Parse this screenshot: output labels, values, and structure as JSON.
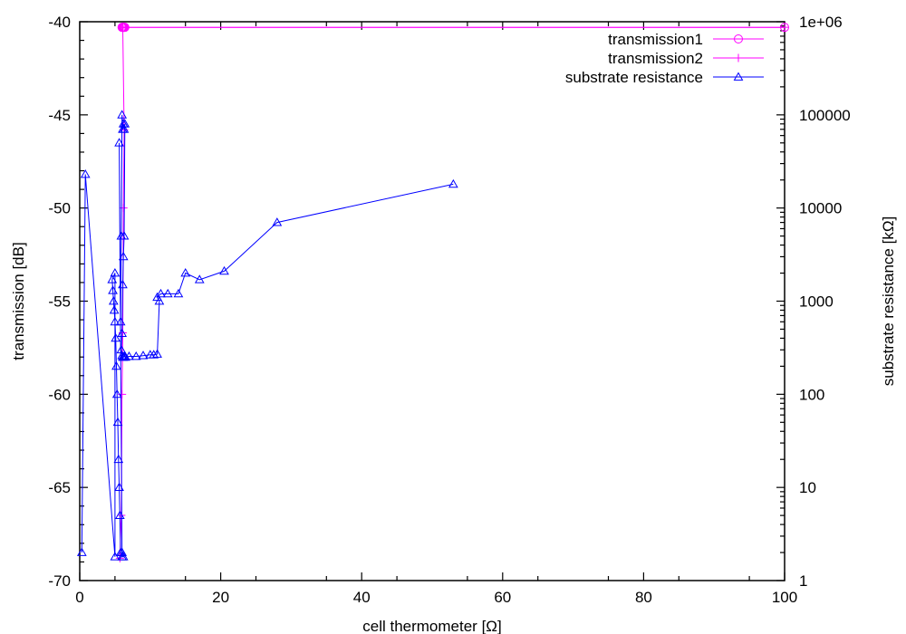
{
  "chart_data": {
    "type": "line",
    "xlabel": "cell thermometer [Ω]",
    "ylabel": "transmission [dB]",
    "y2label": "substrate resistance [kΩ]",
    "xlim": [
      0,
      100
    ],
    "ylim": [
      -70,
      -40
    ],
    "y2lim": [
      1,
      1000000
    ],
    "y2scale": "log",
    "grid": false,
    "legend_position": "top-right",
    "xticks": [
      "0",
      "20",
      "40",
      "60",
      "80",
      "100"
    ],
    "yticks": [
      "-70",
      "-65",
      "-60",
      "-55",
      "-50",
      "-45",
      "-40"
    ],
    "y2ticks": [
      "1",
      "10",
      "100",
      "1000",
      "10000",
      "100000",
      "1e+06"
    ],
    "colors": {
      "transmission1": "#ff00ff",
      "transmission2": "#ff00ff",
      "substrate": "#0000ff"
    },
    "series": [
      {
        "name": "transmission1",
        "axis": "y",
        "marker": "circle",
        "x": [
          6.0,
          6.1,
          6.2,
          6.3,
          6.4,
          100
        ],
        "y": [
          -40.3,
          -40.3,
          -40.3,
          -40.3,
          -40.3,
          -40.3
        ]
      },
      {
        "name": "transmission2",
        "axis": "y",
        "marker": "plus",
        "x": [
          5.7,
          5.9,
          6.0,
          6.1,
          6.2,
          6.3,
          6.1,
          6.0,
          6.3,
          6.5,
          100
        ],
        "y": [
          -68.8,
          -66.5,
          -60.0,
          -56.7,
          -50.0,
          -45.8,
          -40.3,
          -40.3,
          -40.3,
          -40.3,
          -40.3
        ]
      },
      {
        "name": "substrate resistance",
        "axis": "y2",
        "marker": "triangle",
        "x": [
          0.3,
          0.8,
          5.0,
          5.0,
          4.6,
          4.7,
          4.8,
          4.9,
          5.0,
          5.1,
          5.2,
          5.3,
          5.4,
          5.5,
          5.6,
          5.7,
          5.8,
          6.0,
          6.2,
          6.0,
          5.6,
          5.8,
          5.9,
          6.0,
          6.1,
          6.2,
          6.3,
          6.4,
          6.3,
          6.2,
          6.1,
          6.0,
          5.9,
          6.0,
          6.1,
          6.2,
          6.3,
          6.4,
          6.5,
          7.0,
          8.0,
          9.0,
          10.0,
          10.5,
          11.0,
          11.3,
          11.0,
          11.5,
          12.5,
          14.0,
          15.0,
          17.0,
          20.5,
          28.0,
          53.0
        ],
        "y": [
          2.0,
          23000,
          1.8,
          2000,
          1700,
          1300,
          1000,
          800,
          600,
          400,
          200,
          100,
          50,
          20,
          10,
          5,
          2,
          1.8,
          1.8,
          2,
          50000,
          600,
          5000,
          100000,
          70000,
          80000,
          70000,
          80000,
          5000,
          3000,
          1500,
          450,
          300,
          260,
          250,
          250,
          255,
          255,
          250,
          255,
          255,
          260,
          265,
          265,
          270,
          1000,
          1100,
          1200,
          1200,
          1200,
          2000,
          1700,
          2100,
          7000,
          18000
        ]
      }
    ]
  }
}
